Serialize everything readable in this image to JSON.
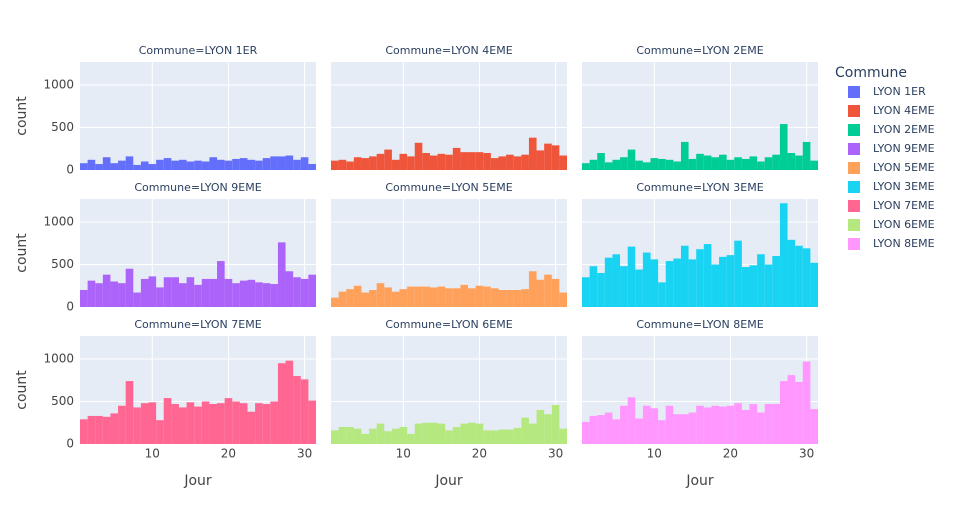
{
  "chart_data": {
    "type": "histogram",
    "xlabel": "Jour",
    "ylabel": "count",
    "legend_title": "Commune",
    "bins": [
      0.5,
      1.5,
      2.5,
      3.5,
      4.5,
      5.5,
      6.5,
      7.5,
      8.5,
      9.5,
      10.5,
      11.5,
      12.5,
      13.5,
      14.5,
      15.5,
      16.5,
      17.5,
      18.5,
      19.5,
      20.5,
      21.5,
      22.5,
      23.5,
      24.5,
      25.5,
      26.5,
      27.5,
      28.5,
      29.5,
      30.5,
      31.5
    ],
    "xlim": [
      0.5,
      31.5
    ],
    "xticks": [
      10,
      20,
      30
    ],
    "ylim": [
      0,
      1270
    ],
    "yticks": [
      0,
      500,
      1000
    ],
    "grid": true,
    "series": [
      {
        "name": "LYON 1ER",
        "title": "Commune=LYON 1ER",
        "color": "#636efa",
        "values": [
          80,
          120,
          70,
          150,
          80,
          110,
          160,
          60,
          100,
          70,
          120,
          140,
          110,
          120,
          100,
          110,
          100,
          150,
          120,
          110,
          130,
          140,
          120,
          110,
          140,
          160,
          160,
          170,
          120,
          150,
          70
        ]
      },
      {
        "name": "LYON 4EME",
        "title": "Commune=LYON 4EME",
        "color": "#ef553b",
        "values": [
          110,
          120,
          100,
          150,
          140,
          160,
          190,
          240,
          120,
          190,
          160,
          320,
          200,
          170,
          190,
          180,
          260,
          210,
          210,
          210,
          200,
          140,
          160,
          180,
          160,
          180,
          380,
          230,
          310,
          290,
          170
        ]
      },
      {
        "name": "LYON 2EME",
        "title": "Commune=LYON 2EME",
        "color": "#00cc96",
        "values": [
          80,
          120,
          200,
          90,
          120,
          150,
          240,
          110,
          90,
          140,
          130,
          120,
          100,
          330,
          130,
          190,
          170,
          150,
          180,
          120,
          150,
          130,
          160,
          100,
          150,
          180,
          540,
          200,
          170,
          330,
          110
        ]
      },
      {
        "name": "LYON 9EME",
        "title": "Commune=LYON 9EME",
        "color": "#ab63fa",
        "values": [
          200,
          310,
          280,
          380,
          300,
          280,
          450,
          170,
          330,
          360,
          230,
          350,
          350,
          280,
          350,
          260,
          330,
          330,
          540,
          330,
          280,
          310,
          320,
          290,
          280,
          270,
          760,
          420,
          350,
          330,
          380
        ]
      },
      {
        "name": "LYON 5EME",
        "title": "Commune=LYON 5EME",
        "color": "#ffa15a",
        "values": [
          110,
          180,
          210,
          250,
          170,
          200,
          280,
          230,
          180,
          210,
          240,
          240,
          240,
          230,
          240,
          220,
          220,
          260,
          220,
          250,
          240,
          220,
          200,
          200,
          200,
          210,
          420,
          320,
          380,
          330,
          170
        ]
      },
      {
        "name": "LYON 3EME",
        "title": "Commune=LYON 3EME",
        "color": "#19d3f3",
        "values": [
          350,
          480,
          400,
          580,
          620,
          480,
          710,
          440,
          640,
          560,
          290,
          540,
          570,
          720,
          560,
          680,
          740,
          500,
          590,
          610,
          780,
          470,
          490,
          620,
          500,
          600,
          1220,
          790,
          720,
          690,
          520
        ]
      },
      {
        "name": "LYON 7EME",
        "title": "Commune=LYON 7EME",
        "color": "#ff6692",
        "values": [
          290,
          330,
          330,
          320,
          360,
          450,
          740,
          430,
          480,
          490,
          280,
          540,
          470,
          430,
          490,
          440,
          500,
          470,
          480,
          540,
          500,
          480,
          380,
          480,
          470,
          500,
          950,
          980,
          800,
          760,
          510
        ]
      },
      {
        "name": "LYON 6EME",
        "title": "Commune=LYON 6EME",
        "color": "#b6e880",
        "values": [
          160,
          200,
          200,
          180,
          120,
          180,
          240,
          150,
          180,
          200,
          120,
          240,
          250,
          250,
          240,
          160,
          200,
          240,
          250,
          240,
          160,
          160,
          170,
          170,
          190,
          310,
          240,
          400,
          350,
          460,
          180
        ]
      },
      {
        "name": "LYON 8EME",
        "title": "Commune=LYON 8EME",
        "color": "#ff97ff",
        "values": [
          260,
          330,
          340,
          370,
          290,
          450,
          550,
          300,
          450,
          420,
          280,
          450,
          350,
          350,
          370,
          450,
          430,
          450,
          440,
          450,
          480,
          400,
          470,
          370,
          470,
          470,
          740,
          810,
          730,
          970,
          410
        ]
      }
    ]
  }
}
